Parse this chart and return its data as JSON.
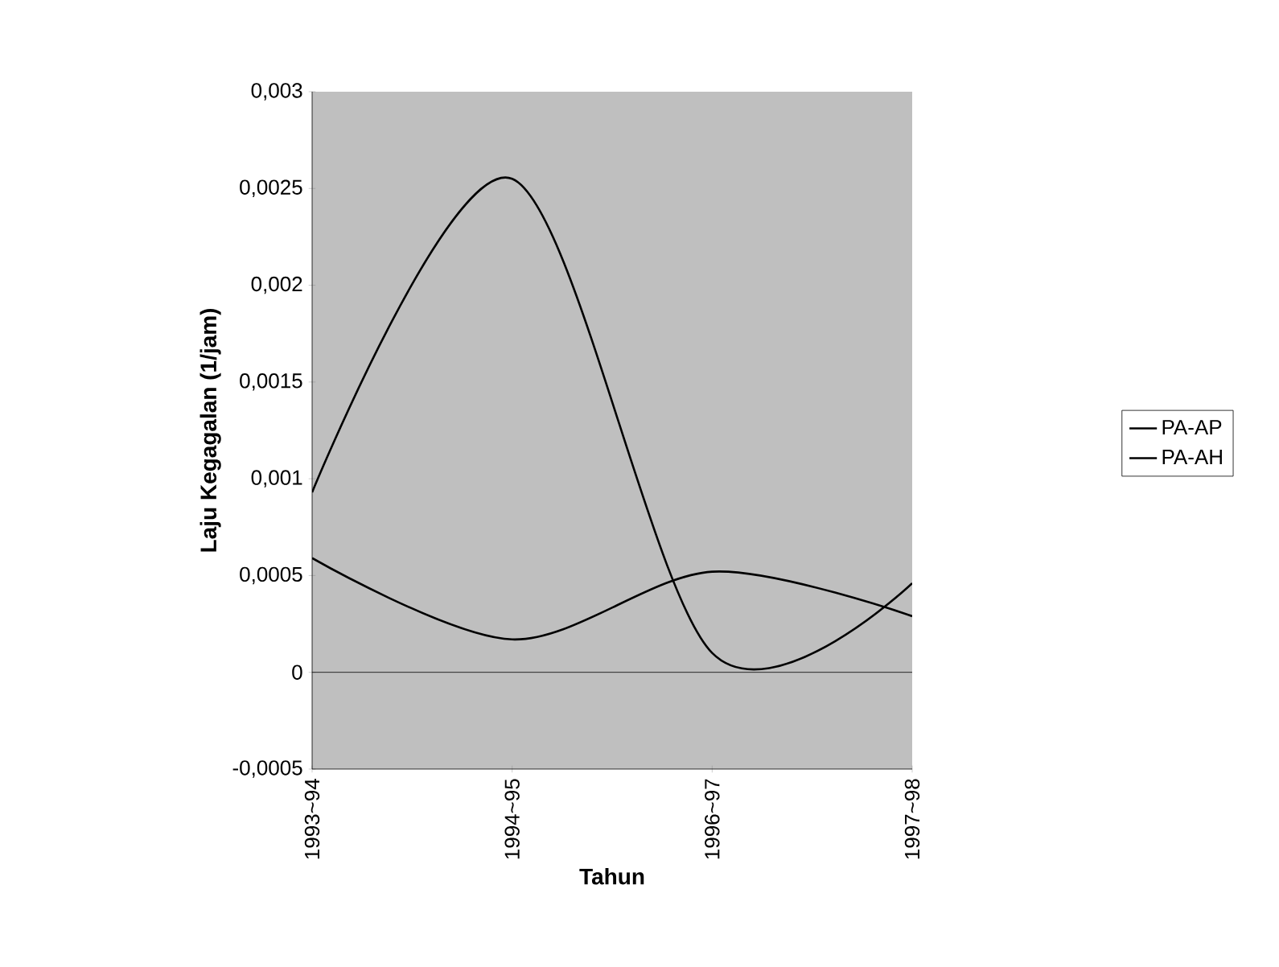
{
  "chart_data": {
    "type": "line",
    "xlabel": "Tahun",
    "ylabel": "Laju Kegagalan (1/jam)",
    "categories": [
      "1993~94",
      "1994~95",
      "1996~97",
      "1997~98"
    ],
    "series": [
      {
        "name": "PA-AP",
        "color": "#000000",
        "values": [
          0.00093,
          0.00255,
          0.0001,
          0.00046
        ]
      },
      {
        "name": "PA-AH",
        "color": "#000000",
        "values": [
          0.00059,
          0.00017,
          0.00052,
          0.00029
        ]
      }
    ],
    "ylim": [
      -0.0005,
      0.003
    ],
    "yticks": [
      {
        "value": -0.0005,
        "label": "-0,0005"
      },
      {
        "value": 0,
        "label": "0"
      },
      {
        "value": 0.0005,
        "label": "0,0005"
      },
      {
        "value": 0.001,
        "label": "0,001"
      },
      {
        "value": 0.0015,
        "label": "0,0015"
      },
      {
        "value": 0.002,
        "label": "0,002"
      },
      {
        "value": 0.0025,
        "label": "0,0025"
      },
      {
        "value": 0.003,
        "label": "0,003"
      }
    ],
    "ref_lines": [
      {
        "axis": "y",
        "value": 0
      }
    ],
    "grid": false,
    "legend": "right",
    "marker": "none",
    "line_style": "solid"
  }
}
